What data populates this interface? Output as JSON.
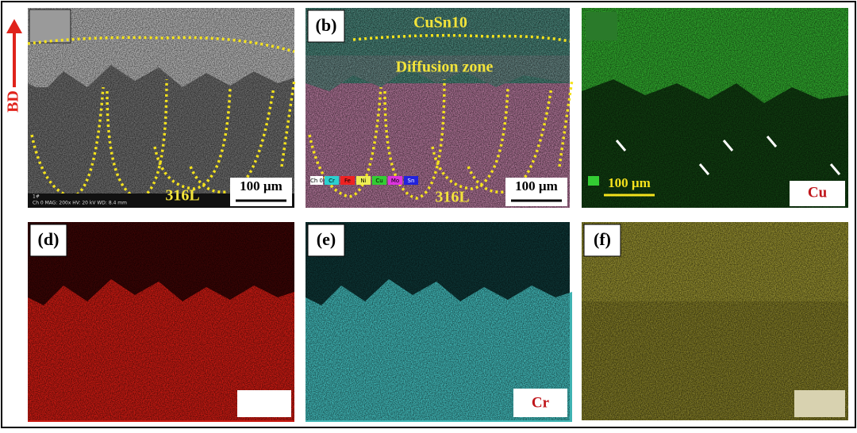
{
  "build_direction": "BD",
  "panels": [
    {
      "label_bottom": "316L",
      "scale_bar": "100 µm",
      "footer": "Ch 0   MAG: 200x   HV: 20 kV   WD: 8.4 mm",
      "corner": "1#"
    },
    {
      "label": "(b)",
      "top_text": "CuSn10",
      "middle_text": "Diffusion zone",
      "label_bottom": "316L",
      "scale_bar": "100 µm",
      "legend": [
        "Ch 0",
        "Cr",
        "Fe",
        "Ni",
        "Cu",
        "Mo",
        "Sn"
      ]
    },
    {
      "scale_bar": "100 µm",
      "element": "Cu"
    },
    {
      "label": "(d)"
    },
    {
      "label": "(e)",
      "element": "Cr"
    },
    {
      "label": "(f)"
    }
  ]
}
